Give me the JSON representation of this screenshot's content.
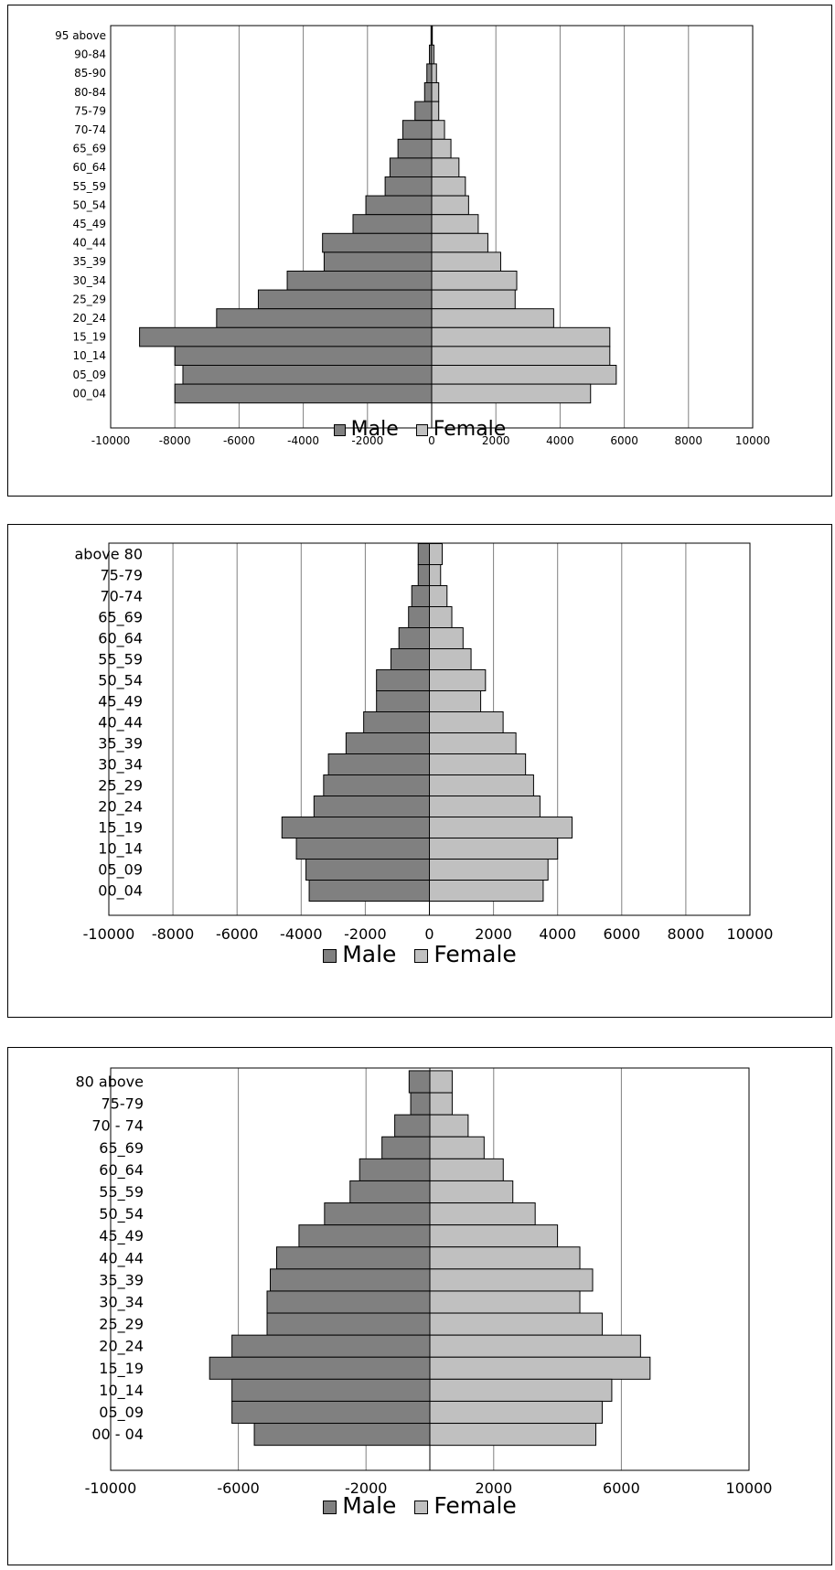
{
  "colors": {
    "male": "#808080",
    "female": "#c0c0c0",
    "grid": "#808080",
    "frame": "#000000"
  },
  "chart_data": [
    {
      "type": "bar",
      "orientation": "horizontal",
      "layout": "population-pyramid",
      "categories": [
        "95 above",
        "90-84",
        "85-90",
        "80-84",
        "75-79",
        "70-74",
        "65_69",
        "60_64",
        "55_59",
        "50_54",
        "45_49",
        "40_44",
        "35_39",
        "30_34",
        "25_29",
        "20_24",
        "15_19",
        "10_14",
        "05_09",
        "00_04"
      ],
      "series": [
        {
          "name": "Male",
          "values": [
            -20,
            -70,
            -150,
            -220,
            -520,
            -900,
            -1050,
            -1300,
            -1450,
            -2050,
            -2450,
            -3400,
            -3350,
            -4500,
            -5400,
            -6700,
            -9100,
            -8000,
            -7750,
            -8000
          ]
        },
        {
          "name": "Female",
          "values": [
            20,
            70,
            150,
            220,
            220,
            400,
            600,
            850,
            1050,
            1150,
            1450,
            1750,
            2150,
            2650,
            2600,
            3800,
            5550,
            5550,
            5750,
            4950
          ]
        }
      ],
      "xlim": [
        -10000,
        10000
      ],
      "xticks": [
        "-10000",
        "-8000",
        "-6000",
        "-4000",
        "-2000",
        "0",
        "2000",
        "4000",
        "6000",
        "8000",
        "10000"
      ],
      "grid": true,
      "legend_position": "bottom"
    },
    {
      "type": "bar",
      "orientation": "horizontal",
      "layout": "population-pyramid",
      "categories": [
        "above 80",
        "75-79",
        "70-74",
        "65_69",
        "60_64",
        "55_59",
        "50_54",
        "45_49",
        "40_44",
        "35_39",
        "30_34",
        "25_29",
        "20_24",
        "15_19",
        "10_14",
        "05_09",
        "00_04"
      ],
      "series": [
        {
          "name": "Male",
          "values": [
            -350,
            -350,
            -550,
            -650,
            -950,
            -1200,
            -1650,
            -1650,
            -2050,
            -2600,
            -3150,
            -3300,
            -3600,
            -4600,
            -4150,
            -3850,
            -3750
          ]
        },
        {
          "name": "Female",
          "values": [
            400,
            350,
            550,
            700,
            1050,
            1300,
            1750,
            1600,
            2300,
            2700,
            3000,
            3250,
            3450,
            4450,
            4000,
            3700,
            3550
          ]
        }
      ],
      "xlim": [
        -10000,
        10000
      ],
      "xticks": [
        "-10000",
        "-8000",
        "-6000",
        "-4000",
        "-2000",
        "0",
        "2000",
        "4000",
        "6000",
        "8000",
        "10000"
      ],
      "grid": true,
      "legend_position": "bottom"
    },
    {
      "type": "bar",
      "orientation": "horizontal",
      "layout": "population-pyramid",
      "categories": [
        "80 above",
        "75-79",
        "70 - 74",
        "65_69",
        "60_64",
        "55_59",
        "50_54",
        "45_49",
        "40_44",
        "35_39",
        "30_34",
        "25_29",
        "20_24",
        "15_19",
        "10_14",
        "05_09",
        "00 - 04"
      ],
      "series": [
        {
          "name": "Male",
          "values": [
            -650,
            -600,
            -1100,
            -1500,
            -2200,
            -2500,
            -3300,
            -4100,
            -4800,
            -5000,
            -5100,
            -5100,
            -6200,
            -6900,
            -6200,
            -6200,
            -5500
          ]
        },
        {
          "name": "Female",
          "values": [
            700,
            700,
            1200,
            1700,
            2300,
            2600,
            3300,
            4000,
            4700,
            5100,
            4700,
            5400,
            6600,
            6900,
            5700,
            5400,
            5200
          ]
        }
      ],
      "xlim": [
        -10000,
        10000
      ],
      "xticks": [
        "-10000",
        "-6000",
        "-2000",
        "2000",
        "6000",
        "10000"
      ],
      "grid": true,
      "legend_position": "bottom"
    }
  ]
}
